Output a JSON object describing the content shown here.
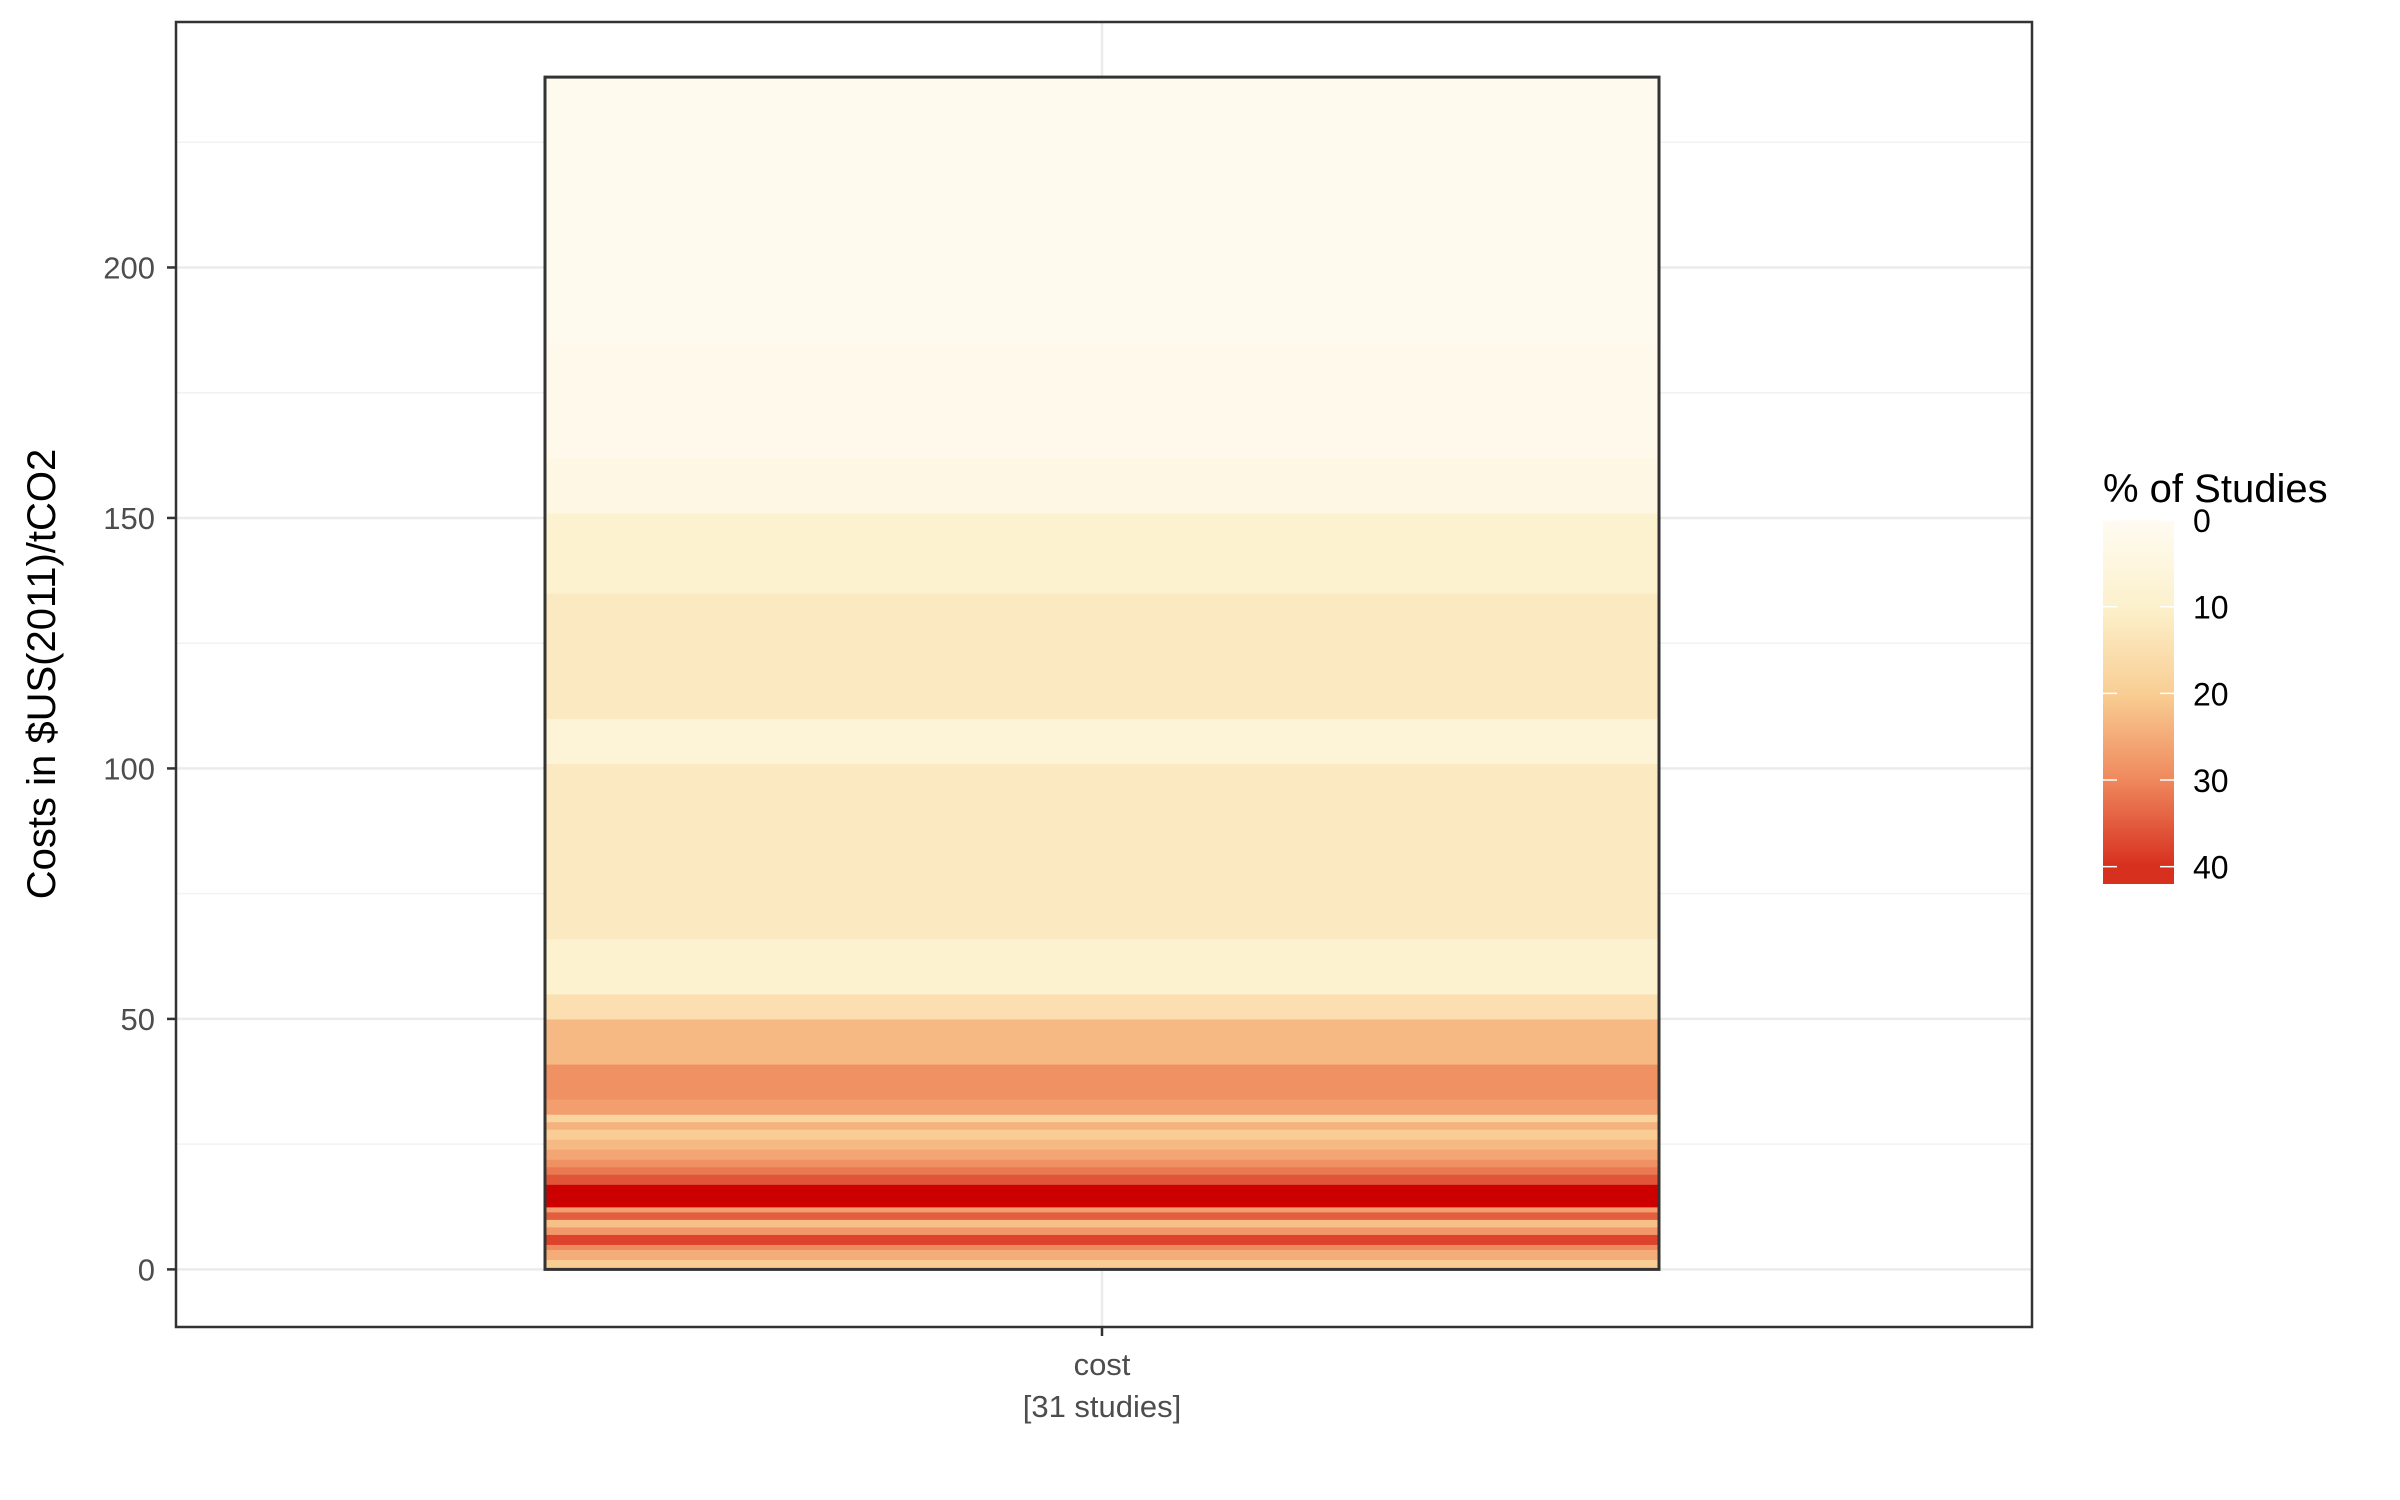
{
  "chart_data": {
    "type": "heatmap",
    "title": "",
    "xlabel": "",
    "ylabel": "Costs in $US(2011)/tCO2",
    "ylim": [
      -11.5,
      249
    ],
    "y_ticks": [
      0,
      50,
      100,
      150,
      200
    ],
    "y_tick_labels": [
      "0",
      "50",
      "100",
      "150",
      "200"
    ],
    "categories": [
      "cost"
    ],
    "category_sublabels": [
      "[31 studies]"
    ],
    "grid": true,
    "legend": {
      "title": "% of Studies",
      "position": "right",
      "min": 0,
      "max": 42,
      "ticks": [
        0,
        10,
        20,
        30,
        40
      ],
      "tick_labels": [
        "0",
        "10",
        "20",
        "30",
        "40"
      ],
      "colors": [
        "#fffbf2",
        "#fcf1cc",
        "#f9cd93",
        "#ef8a5e",
        "#d7301f"
      ]
    },
    "bands": [
      {
        "y0": 0,
        "y1": 2,
        "pct": 20
      },
      {
        "y0": 2,
        "y1": 4,
        "pct": 25
      },
      {
        "y0": 4,
        "y1": 5,
        "pct": 30
      },
      {
        "y0": 5,
        "y1": 7,
        "pct": 38
      },
      {
        "y0": 7,
        "y1": 8.5,
        "pct": 28
      },
      {
        "y0": 8.5,
        "y1": 10,
        "pct": 22
      },
      {
        "y0": 10,
        "y1": 11.5,
        "pct": 35
      },
      {
        "y0": 11.5,
        "y1": 12.5,
        "pct": 27
      },
      {
        "y0": 12.5,
        "y1": 17,
        "pct": 42
      },
      {
        "y0": 17,
        "y1": 19,
        "pct": 36
      },
      {
        "y0": 19,
        "y1": 20.5,
        "pct": 32
      },
      {
        "y0": 20.5,
        "y1": 22,
        "pct": 29
      },
      {
        "y0": 22,
        "y1": 24,
        "pct": 26
      },
      {
        "y0": 24,
        "y1": 26,
        "pct": 23
      },
      {
        "y0": 26,
        "y1": 28,
        "pct": 20
      },
      {
        "y0": 28,
        "y1": 29.5,
        "pct": 24
      },
      {
        "y0": 29.5,
        "y1": 31,
        "pct": 18
      },
      {
        "y0": 31,
        "y1": 34,
        "pct": 27
      },
      {
        "y0": 34,
        "y1": 41,
        "pct": 29
      },
      {
        "y0": 41,
        "y1": 50,
        "pct": 23
      },
      {
        "y0": 50,
        "y1": 55,
        "pct": 15
      },
      {
        "y0": 55,
        "y1": 66,
        "pct": 9
      },
      {
        "y0": 66,
        "y1": 101,
        "pct": 12
      },
      {
        "y0": 101,
        "y1": 110,
        "pct": 7
      },
      {
        "y0": 110,
        "y1": 135,
        "pct": 12
      },
      {
        "y0": 135,
        "y1": 151,
        "pct": 9
      },
      {
        "y0": 151,
        "y1": 162,
        "pct": 4
      },
      {
        "y0": 162,
        "y1": 185,
        "pct": 2
      },
      {
        "y0": 185,
        "y1": 238,
        "pct": 1
      }
    ]
  }
}
